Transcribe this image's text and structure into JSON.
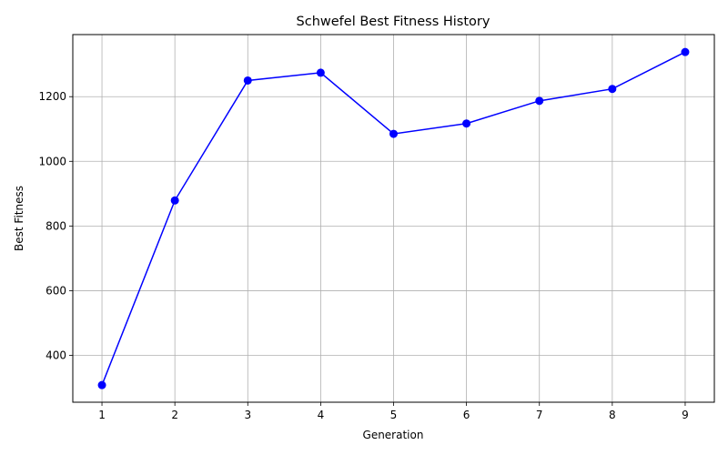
{
  "chart_data": {
    "type": "line",
    "title": "Schwefel Best Fitness History",
    "xlabel": "Generation",
    "ylabel": "Best Fitness",
    "x": [
      1,
      2,
      3,
      4,
      5,
      6,
      7,
      8,
      9
    ],
    "series": [
      {
        "values": [
          308,
          879,
          1250,
          1274,
          1085,
          1117,
          1187,
          1224,
          1338
        ],
        "color": "#0000ff",
        "marker": "circle"
      }
    ],
    "xlim": [
      0.6,
      9.4
    ],
    "ylim": [
      255,
      1392
    ],
    "xticks": [
      1,
      2,
      3,
      4,
      5,
      6,
      7,
      8,
      9
    ],
    "yticks": [
      400,
      600,
      800,
      1000,
      1200
    ],
    "grid": true,
    "legend": false
  }
}
